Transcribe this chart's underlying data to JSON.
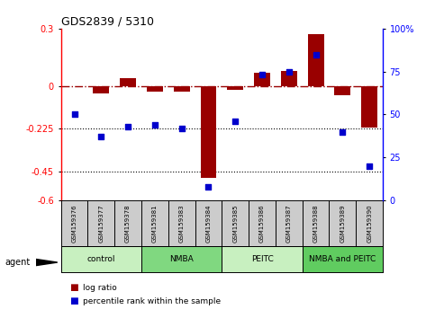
{
  "title": "GDS2839 / 5310",
  "samples": [
    "GSM159376",
    "GSM159377",
    "GSM159378",
    "GSM159381",
    "GSM159383",
    "GSM159384",
    "GSM159385",
    "GSM159386",
    "GSM159387",
    "GSM159388",
    "GSM159389",
    "GSM159390"
  ],
  "log_ratio": [
    0.0,
    -0.04,
    0.04,
    -0.03,
    -0.03,
    -0.48,
    -0.02,
    0.07,
    0.08,
    0.27,
    -0.05,
    -0.22
  ],
  "percentile_rank": [
    50,
    37,
    43,
    44,
    42,
    8,
    46,
    73,
    75,
    85,
    40,
    20
  ],
  "groups": [
    {
      "label": "control",
      "start": 0,
      "end": 3,
      "color": "#c8f0c0"
    },
    {
      "label": "NMBA",
      "start": 3,
      "end": 6,
      "color": "#80d880"
    },
    {
      "label": "PEITC",
      "start": 6,
      "end": 9,
      "color": "#c8f0c0"
    },
    {
      "label": "NMBA and PEITC",
      "start": 9,
      "end": 12,
      "color": "#60cc60"
    }
  ],
  "bar_color": "#990000",
  "dot_color": "#0000cc",
  "ylim_left": [
    -0.6,
    0.3
  ],
  "ylim_right": [
    0,
    100
  ],
  "yticks_left": [
    -0.6,
    -0.45,
    -0.225,
    0.0,
    0.3
  ],
  "ytick_labels_left": [
    "-0.6",
    "-0.45",
    "-0.225",
    "0",
    "0.3"
  ],
  "yticks_right": [
    0,
    25,
    50,
    75,
    100
  ],
  "ytick_labels_right": [
    "0",
    "25",
    "50",
    "75",
    "100%"
  ],
  "hline_y": 0.0,
  "dotted_lines": [
    -0.225,
    -0.45
  ],
  "bar_width": 0.6,
  "agent_label": "agent",
  "legend_items": [
    {
      "label": "log ratio",
      "color": "#990000"
    },
    {
      "label": "percentile rank within the sample",
      "color": "#0000cc"
    }
  ],
  "sample_label_bg": "#cccccc",
  "figsize": [
    4.83,
    3.54
  ],
  "dpi": 100
}
